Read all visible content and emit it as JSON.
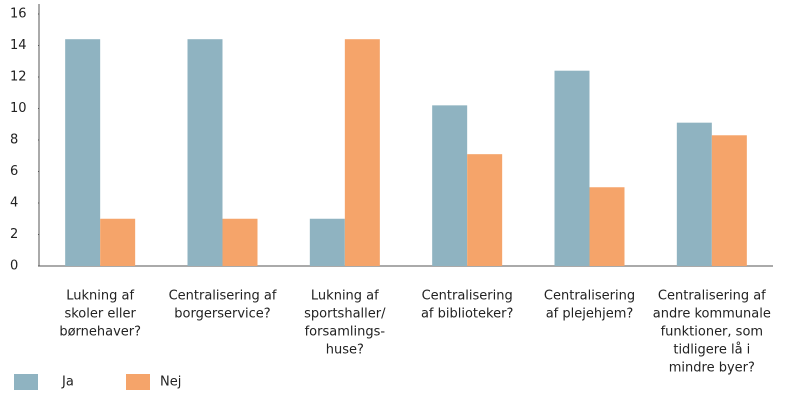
{
  "chart_data": {
    "type": "bar",
    "categories": [
      [
        "Lukning af",
        "skoler eller",
        "børnehaver?"
      ],
      [
        "Centralisering af",
        "borgerservice?"
      ],
      [
        "Lukning af",
        "sportshaller/",
        "forsamlings-",
        "huse?"
      ],
      [
        "Centralisering",
        "af biblioteker?"
      ],
      [
        "Centralisering",
        "af plejehjem?"
      ],
      [
        "Centralisering af",
        "andre kommunale",
        "funktioner, som",
        "tidligere lå i",
        "mindre byer?"
      ]
    ],
    "series": [
      {
        "name": "Ja",
        "color": "#8fb3c1",
        "values": [
          14.4,
          14.4,
          3,
          10.2,
          12.4,
          9.1
        ]
      },
      {
        "name": "Nej",
        "color": "#f5a46a",
        "values": [
          3,
          3,
          14.4,
          7.1,
          5,
          8.3
        ]
      }
    ],
    "ylim": [
      0,
      16
    ],
    "yticks": [
      0,
      2,
      4,
      6,
      8,
      10,
      12,
      14,
      16
    ],
    "grid": false,
    "legend": "bottom-left"
  }
}
